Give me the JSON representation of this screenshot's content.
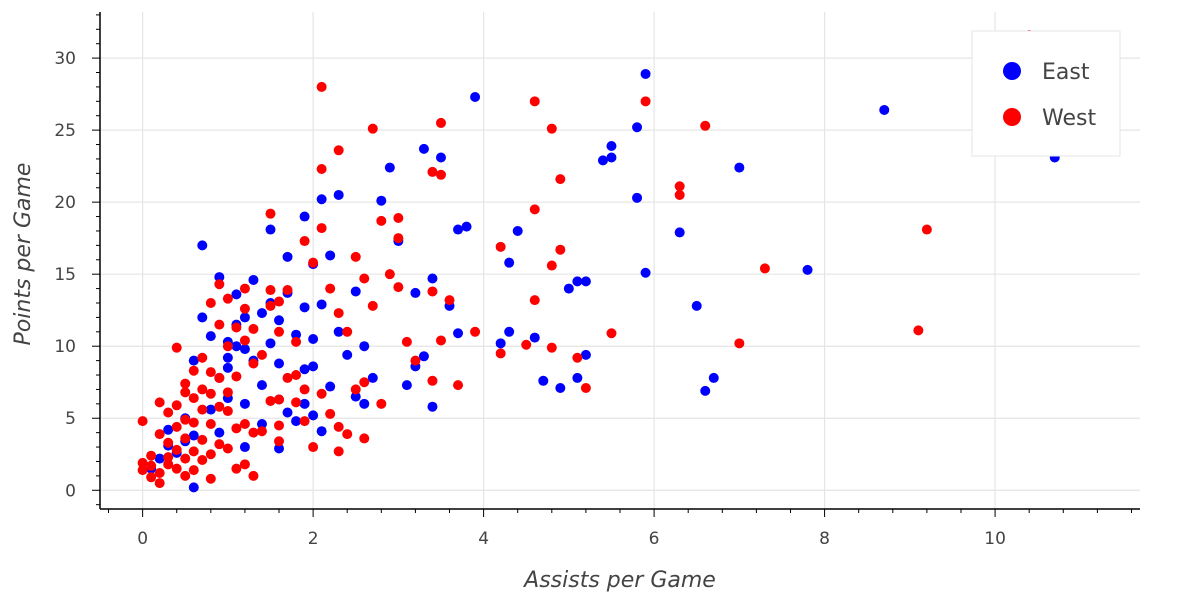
{
  "chart_data": {
    "type": "scatter",
    "title": "",
    "xlabel": "Assists per Game",
    "ylabel": "Points per Game",
    "xlim": [
      -0.5,
      11.7
    ],
    "ylim": [
      -1.3,
      33.2
    ],
    "xticks": [
      0,
      2,
      4,
      6,
      8,
      10
    ],
    "yticks": [
      0,
      5,
      10,
      15,
      20,
      25,
      30
    ],
    "grid": true,
    "legend_position": "top-right",
    "series": [
      {
        "name": "East",
        "color": "#0000ff",
        "points": [
          [
            0.1,
            1.5
          ],
          [
            0.2,
            2.2
          ],
          [
            0.3,
            3.1
          ],
          [
            0.3,
            4.2
          ],
          [
            0.4,
            2.6
          ],
          [
            0.5,
            3.4
          ],
          [
            0.5,
            5.0
          ],
          [
            0.6,
            0.2
          ],
          [
            0.6,
            3.8
          ],
          [
            0.6,
            9.0
          ],
          [
            0.7,
            17.0
          ],
          [
            0.7,
            12.0
          ],
          [
            0.8,
            5.6
          ],
          [
            0.8,
            10.7
          ],
          [
            0.9,
            14.8
          ],
          [
            0.9,
            7.8
          ],
          [
            0.9,
            4.0
          ],
          [
            1.0,
            10.3
          ],
          [
            1.0,
            9.2
          ],
          [
            1.0,
            8.5
          ],
          [
            1.0,
            6.4
          ],
          [
            1.1,
            11.5
          ],
          [
            1.1,
            10.0
          ],
          [
            1.1,
            13.6
          ],
          [
            1.2,
            12.0
          ],
          [
            1.2,
            9.8
          ],
          [
            1.2,
            6.0
          ],
          [
            1.2,
            3.0
          ],
          [
            1.3,
            14.6
          ],
          [
            1.3,
            9.0
          ],
          [
            1.4,
            12.3
          ],
          [
            1.4,
            7.3
          ],
          [
            1.4,
            4.6
          ],
          [
            1.5,
            13.0
          ],
          [
            1.5,
            18.1
          ],
          [
            1.5,
            10.2
          ],
          [
            1.6,
            11.8
          ],
          [
            1.6,
            8.8
          ],
          [
            1.6,
            6.3
          ],
          [
            1.6,
            2.9
          ],
          [
            1.7,
            16.2
          ],
          [
            1.7,
            13.7
          ],
          [
            1.7,
            5.4
          ],
          [
            1.8,
            10.8
          ],
          [
            1.8,
            4.8
          ],
          [
            1.9,
            19.0
          ],
          [
            1.9,
            12.7
          ],
          [
            1.9,
            8.4
          ],
          [
            1.9,
            6.0
          ],
          [
            2.0,
            15.7
          ],
          [
            2.0,
            10.5
          ],
          [
            2.0,
            8.6
          ],
          [
            2.0,
            5.2
          ],
          [
            2.1,
            20.2
          ],
          [
            2.1,
            12.9
          ],
          [
            2.1,
            4.1
          ],
          [
            2.2,
            16.3
          ],
          [
            2.2,
            7.2
          ],
          [
            2.3,
            20.5
          ],
          [
            2.3,
            11.0
          ],
          [
            2.4,
            9.4
          ],
          [
            2.5,
            13.8
          ],
          [
            2.5,
            6.5
          ],
          [
            2.6,
            6.0
          ],
          [
            2.6,
            10.0
          ],
          [
            2.7,
            7.8
          ],
          [
            2.8,
            20.1
          ],
          [
            2.9,
            22.4
          ],
          [
            3.0,
            17.3
          ],
          [
            3.1,
            7.3
          ],
          [
            3.2,
            13.7
          ],
          [
            3.2,
            8.6
          ],
          [
            3.3,
            23.7
          ],
          [
            3.3,
            9.3
          ],
          [
            3.4,
            14.7
          ],
          [
            3.4,
            5.8
          ],
          [
            3.5,
            23.1
          ],
          [
            3.6,
            12.8
          ],
          [
            3.7,
            18.1
          ],
          [
            3.7,
            10.9
          ],
          [
            3.8,
            18.3
          ],
          [
            3.9,
            27.3
          ],
          [
            4.2,
            10.2
          ],
          [
            4.3,
            11.0
          ],
          [
            4.3,
            15.8
          ],
          [
            4.4,
            18.0
          ],
          [
            4.6,
            10.6
          ],
          [
            4.7,
            7.6
          ],
          [
            4.9,
            7.1
          ],
          [
            5.0,
            14.0
          ],
          [
            5.1,
            14.5
          ],
          [
            5.1,
            7.8
          ],
          [
            5.2,
            14.5
          ],
          [
            5.2,
            9.4
          ],
          [
            5.4,
            22.9
          ],
          [
            5.5,
            23.1
          ],
          [
            5.5,
            23.9
          ],
          [
            5.8,
            20.3
          ],
          [
            5.8,
            25.2
          ],
          [
            5.9,
            28.9
          ],
          [
            5.9,
            15.1
          ],
          [
            6.3,
            17.9
          ],
          [
            6.5,
            12.8
          ],
          [
            6.6,
            6.9
          ],
          [
            6.7,
            7.8
          ],
          [
            7.0,
            22.4
          ],
          [
            7.8,
            15.3
          ],
          [
            8.7,
            26.4
          ],
          [
            10.7,
            23.1
          ]
        ]
      },
      {
        "name": "West",
        "color": "#ff0000",
        "points": [
          [
            0.0,
            4.8
          ],
          [
            0.0,
            1.9
          ],
          [
            0.0,
            1.4
          ],
          [
            0.1,
            1.7
          ],
          [
            0.1,
            2.4
          ],
          [
            0.1,
            0.9
          ],
          [
            0.2,
            6.1
          ],
          [
            0.2,
            3.9
          ],
          [
            0.2,
            1.2
          ],
          [
            0.2,
            0.5
          ],
          [
            0.3,
            5.4
          ],
          [
            0.3,
            3.3
          ],
          [
            0.3,
            2.3
          ],
          [
            0.3,
            1.8
          ],
          [
            0.4,
            9.9
          ],
          [
            0.4,
            5.9
          ],
          [
            0.4,
            4.4
          ],
          [
            0.4,
            2.8
          ],
          [
            0.4,
            1.5
          ],
          [
            0.5,
            7.4
          ],
          [
            0.5,
            6.8
          ],
          [
            0.5,
            4.9
          ],
          [
            0.5,
            3.6
          ],
          [
            0.5,
            2.2
          ],
          [
            0.5,
            1.0
          ],
          [
            0.6,
            8.3
          ],
          [
            0.6,
            6.4
          ],
          [
            0.6,
            4.7
          ],
          [
            0.6,
            2.7
          ],
          [
            0.6,
            1.4
          ],
          [
            0.7,
            9.2
          ],
          [
            0.7,
            7.0
          ],
          [
            0.7,
            5.6
          ],
          [
            0.7,
            3.5
          ],
          [
            0.7,
            2.1
          ],
          [
            0.8,
            13.0
          ],
          [
            0.8,
            8.2
          ],
          [
            0.8,
            6.7
          ],
          [
            0.8,
            4.6
          ],
          [
            0.8,
            2.5
          ],
          [
            0.8,
            0.8
          ],
          [
            0.9,
            14.3
          ],
          [
            0.9,
            11.5
          ],
          [
            0.9,
            7.8
          ],
          [
            0.9,
            5.8
          ],
          [
            0.9,
            3.2
          ],
          [
            1.0,
            13.3
          ],
          [
            1.0,
            10.0
          ],
          [
            1.0,
            6.8
          ],
          [
            1.0,
            5.5
          ],
          [
            1.0,
            2.9
          ],
          [
            1.1,
            11.3
          ],
          [
            1.1,
            7.9
          ],
          [
            1.1,
            4.3
          ],
          [
            1.1,
            1.5
          ],
          [
            1.2,
            14.0
          ],
          [
            1.2,
            12.6
          ],
          [
            1.2,
            10.4
          ],
          [
            1.2,
            4.6
          ],
          [
            1.2,
            1.8
          ],
          [
            1.3,
            11.2
          ],
          [
            1.3,
            8.8
          ],
          [
            1.3,
            4.0
          ],
          [
            1.3,
            1.0
          ],
          [
            1.4,
            9.4
          ],
          [
            1.4,
            4.1
          ],
          [
            1.5,
            19.2
          ],
          [
            1.5,
            13.9
          ],
          [
            1.5,
            12.8
          ],
          [
            1.5,
            6.2
          ],
          [
            1.6,
            13.1
          ],
          [
            1.6,
            11.0
          ],
          [
            1.6,
            6.3
          ],
          [
            1.6,
            4.5
          ],
          [
            1.6,
            3.4
          ],
          [
            1.7,
            13.9
          ],
          [
            1.7,
            7.8
          ],
          [
            1.8,
            10.3
          ],
          [
            1.8,
            8.0
          ],
          [
            1.8,
            6.1
          ],
          [
            1.9,
            17.3
          ],
          [
            1.9,
            7.0
          ],
          [
            1.9,
            4.8
          ],
          [
            2.0,
            15.8
          ],
          [
            2.0,
            3.0
          ],
          [
            2.1,
            22.3
          ],
          [
            2.1,
            28.0
          ],
          [
            2.1,
            18.2
          ],
          [
            2.1,
            6.7
          ],
          [
            2.2,
            14.0
          ],
          [
            2.2,
            5.3
          ],
          [
            2.3,
            23.6
          ],
          [
            2.3,
            12.3
          ],
          [
            2.3,
            4.4
          ],
          [
            2.3,
            2.7
          ],
          [
            2.4,
            11.0
          ],
          [
            2.4,
            3.9
          ],
          [
            2.5,
            16.2
          ],
          [
            2.5,
            7.0
          ],
          [
            2.6,
            14.7
          ],
          [
            2.6,
            7.5
          ],
          [
            2.6,
            3.6
          ],
          [
            2.7,
            25.1
          ],
          [
            2.7,
            12.8
          ],
          [
            2.8,
            18.7
          ],
          [
            2.8,
            6.0
          ],
          [
            2.9,
            15.0
          ],
          [
            3.0,
            18.9
          ],
          [
            3.0,
            17.5
          ],
          [
            3.0,
            14.1
          ],
          [
            3.1,
            10.3
          ],
          [
            3.2,
            9.0
          ],
          [
            3.4,
            22.1
          ],
          [
            3.4,
            13.8
          ],
          [
            3.4,
            7.6
          ],
          [
            3.5,
            25.5
          ],
          [
            3.5,
            21.9
          ],
          [
            3.5,
            10.4
          ],
          [
            3.6,
            13.2
          ],
          [
            3.7,
            7.3
          ],
          [
            3.9,
            11.0
          ],
          [
            4.2,
            16.9
          ],
          [
            4.2,
            9.5
          ],
          [
            4.5,
            10.1
          ],
          [
            4.6,
            27.0
          ],
          [
            4.6,
            19.5
          ],
          [
            4.6,
            13.2
          ],
          [
            4.8,
            25.1
          ],
          [
            4.8,
            15.6
          ],
          [
            4.8,
            9.9
          ],
          [
            4.9,
            21.6
          ],
          [
            4.9,
            16.7
          ],
          [
            5.1,
            9.2
          ],
          [
            5.2,
            7.1
          ],
          [
            5.5,
            10.9
          ],
          [
            5.9,
            27.0
          ],
          [
            6.3,
            21.1
          ],
          [
            6.3,
            20.5
          ],
          [
            6.6,
            25.3
          ],
          [
            7.0,
            10.2
          ],
          [
            7.3,
            15.4
          ],
          [
            9.1,
            11.1
          ],
          [
            9.2,
            18.1
          ],
          [
            10.4,
            31.6
          ]
        ]
      }
    ]
  }
}
